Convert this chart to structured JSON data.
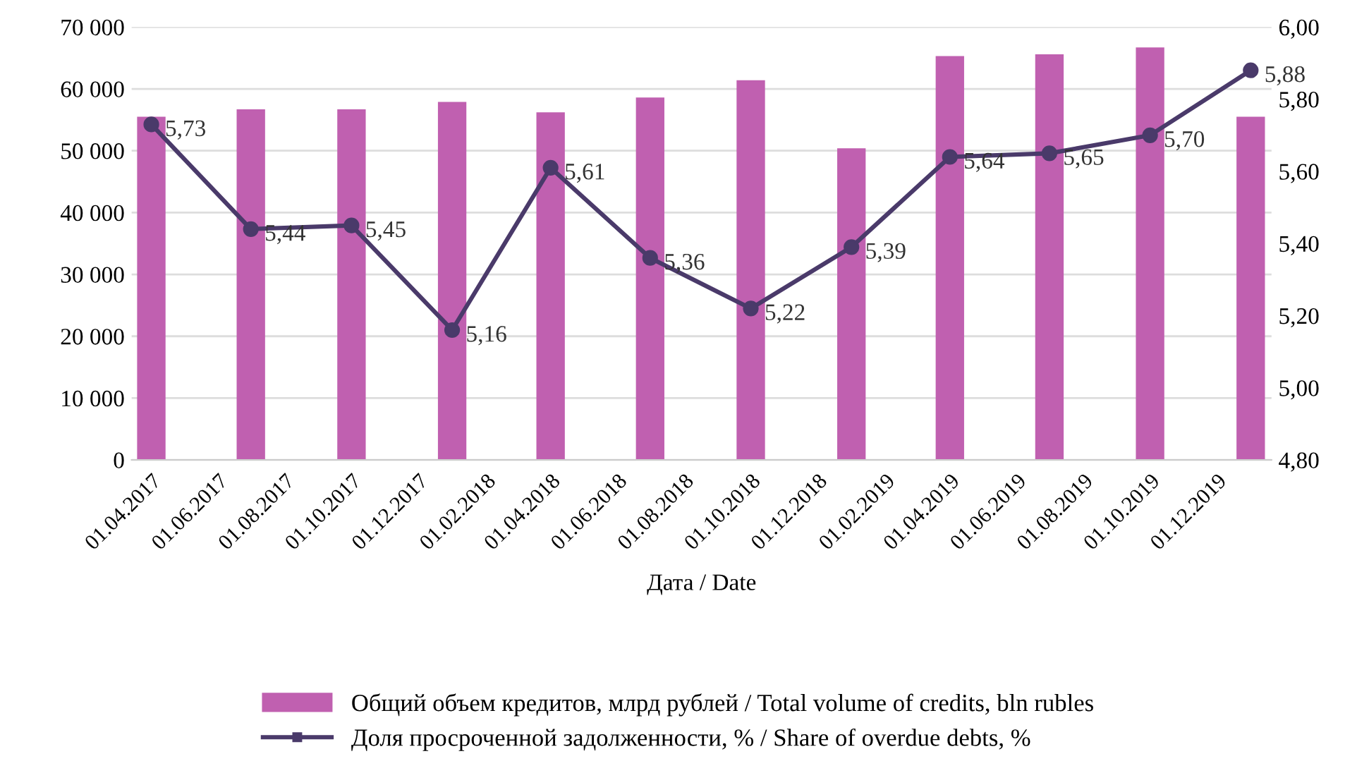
{
  "chart_data": {
    "type": "bar",
    "xlabel": "Дата / Date",
    "x": [
      "2017-04-01",
      "2017-07-01",
      "2017-10-01",
      "2018-01-01",
      "2018-04-01",
      "2018-07-01",
      "2018-10-01",
      "2019-01-01",
      "2019-04-01",
      "2019-07-01",
      "2019-10-01",
      "2020-01-01"
    ],
    "series": [
      {
        "name": "Общий объем кредитов, млрд рублей / Total volume of credits, bln rubles",
        "color": "#c060b0",
        "values": [
          55500,
          56700,
          56700,
          57900,
          56200,
          58600,
          61400,
          50400,
          65300,
          65600,
          66700,
          55500
        ]
      },
      {
        "name": "Доля просроченной задолженности, % / Share of overdue debts, %",
        "type": "line",
        "axis": "y2",
        "color": "#4a3a6a",
        "marker": "circle",
        "values": [
          5.73,
          5.44,
          5.45,
          5.16,
          5.61,
          5.36,
          5.22,
          5.39,
          5.64,
          5.65,
          5.7,
          5.88
        ],
        "value_labels": [
          "5,73",
          "5,44",
          "5,45",
          "5,16",
          "5,61",
          "5,36",
          "5,22",
          "5,39",
          "5,64",
          "5,65",
          "5,70",
          "5,88"
        ]
      }
    ],
    "xlim": [
      "2017-03-14",
      "2020-01-20"
    ],
    "xticks": [
      {
        "value": "2017-04-01",
        "label": "01.04.2017"
      },
      {
        "value": "2017-06-01",
        "label": "01.06.2017"
      },
      {
        "value": "2017-08-01",
        "label": "01.08.2017"
      },
      {
        "value": "2017-10-01",
        "label": "01.10.2017"
      },
      {
        "value": "2017-12-01",
        "label": "01.12.2017"
      },
      {
        "value": "2018-02-01",
        "label": "01.02.2018"
      },
      {
        "value": "2018-04-01",
        "label": "01.04.2018"
      },
      {
        "value": "2018-06-01",
        "label": "01.06.2018"
      },
      {
        "value": "2018-08-01",
        "label": "01.08.2018"
      },
      {
        "value": "2018-10-01",
        "label": "01.10.2018"
      },
      {
        "value": "2018-12-01",
        "label": "01.12.2018"
      },
      {
        "value": "2019-02-01",
        "label": "01.02.2019"
      },
      {
        "value": "2019-04-01",
        "label": "01.04.2019"
      },
      {
        "value": "2019-06-01",
        "label": "01.06.2019"
      },
      {
        "value": "2019-08-01",
        "label": "01.08.2019"
      },
      {
        "value": "2019-10-01",
        "label": "01.10.2019"
      },
      {
        "value": "2019-12-01",
        "label": "01.12.2019"
      }
    ],
    "ylim": [
      0,
      70000
    ],
    "yticks": [
      0,
      {
        "value": 10000,
        "label": "10 000"
      },
      {
        "value": 20000,
        "label": "20 000"
      },
      {
        "value": 30000,
        "label": "30 000"
      },
      {
        "value": 40000,
        "label": "40 000"
      },
      {
        "value": 50000,
        "label": "50 000"
      },
      {
        "value": 60000,
        "label": "60 000"
      },
      {
        "value": 70000,
        "label": "70 000"
      }
    ],
    "y2lim": [
      4.8,
      6.0
    ],
    "y2ticks": [
      {
        "value": 4.8,
        "label": "4,80"
      },
      {
        "value": 5.0,
        "label": "5,00"
      },
      {
        "value": 5.2,
        "label": "5,20"
      },
      {
        "value": 5.4,
        "label": "5,40"
      },
      {
        "value": 5.6,
        "label": "5,60"
      },
      {
        "value": 5.8,
        "label": "5,80"
      },
      {
        "value": 6.0,
        "label": "6,00"
      }
    ],
    "grid": "y",
    "legend": "bottom"
  }
}
